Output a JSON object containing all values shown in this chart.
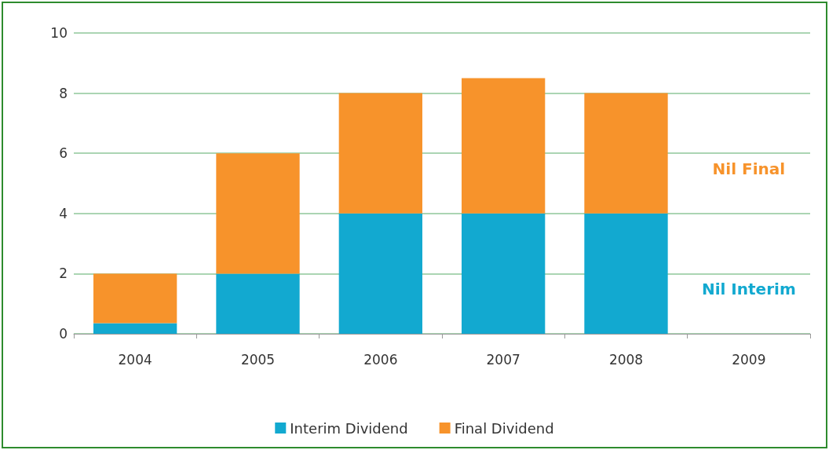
{
  "chart_data": {
    "type": "bar",
    "stacked": true,
    "categories": [
      "2004",
      "2005",
      "2006",
      "2007",
      "2008",
      "2009"
    ],
    "series": [
      {
        "name": "Interim Dividend",
        "color": "#12a9d0",
        "values": [
          0.35,
          2,
          4,
          4,
          4,
          null
        ]
      },
      {
        "name": "Final Dividend",
        "color": "#f7932b",
        "values": [
          1.65,
          4,
          4,
          4.5,
          4,
          null
        ]
      }
    ],
    "ylim": [
      0,
      10
    ],
    "yticks": [
      0,
      2,
      4,
      6,
      8,
      10
    ],
    "grid": "y",
    "legend": "bottom",
    "annotations": [
      "Nil Final",
      "Nil Interim"
    ]
  }
}
